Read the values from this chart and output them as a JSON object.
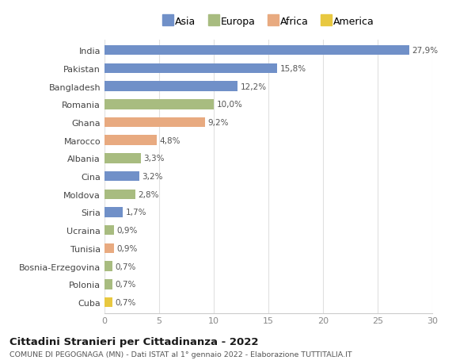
{
  "categories": [
    "India",
    "Pakistan",
    "Bangladesh",
    "Romania",
    "Ghana",
    "Marocco",
    "Albania",
    "Cina",
    "Moldova",
    "Siria",
    "Ucraina",
    "Tunisia",
    "Bosnia-Erzegovina",
    "Polonia",
    "Cuba"
  ],
  "values": [
    27.9,
    15.8,
    12.2,
    10.0,
    9.2,
    4.8,
    3.3,
    3.2,
    2.8,
    1.7,
    0.9,
    0.9,
    0.7,
    0.7,
    0.7
  ],
  "labels": [
    "27,9%",
    "15,8%",
    "12,2%",
    "10,0%",
    "9,2%",
    "4,8%",
    "3,3%",
    "3,2%",
    "2,8%",
    "1,7%",
    "0,9%",
    "0,9%",
    "0,7%",
    "0,7%",
    "0,7%"
  ],
  "colors": [
    "#7090c8",
    "#7090c8",
    "#7090c8",
    "#a8bc80",
    "#e8aa80",
    "#e8aa80",
    "#a8bc80",
    "#7090c8",
    "#a8bc80",
    "#7090c8",
    "#a8bc80",
    "#e8aa80",
    "#a8bc80",
    "#a8bc80",
    "#e8c840"
  ],
  "legend_labels": [
    "Asia",
    "Europa",
    "Africa",
    "America"
  ],
  "legend_colors": [
    "#7090c8",
    "#a8bc80",
    "#e8aa80",
    "#e8c840"
  ],
  "title": "Cittadini Stranieri per Cittadinanza - 2022",
  "subtitle": "COMUNE DI PEGOGNAGA (MN) - Dati ISTAT al 1° gennaio 2022 - Elaborazione TUTTITALIA.IT",
  "xlim": [
    0,
    30
  ],
  "xticks": [
    0,
    5,
    10,
    15,
    20,
    25,
    30
  ],
  "background_color": "#ffffff",
  "grid_color": "#e0e0e0",
  "bar_height": 0.55
}
